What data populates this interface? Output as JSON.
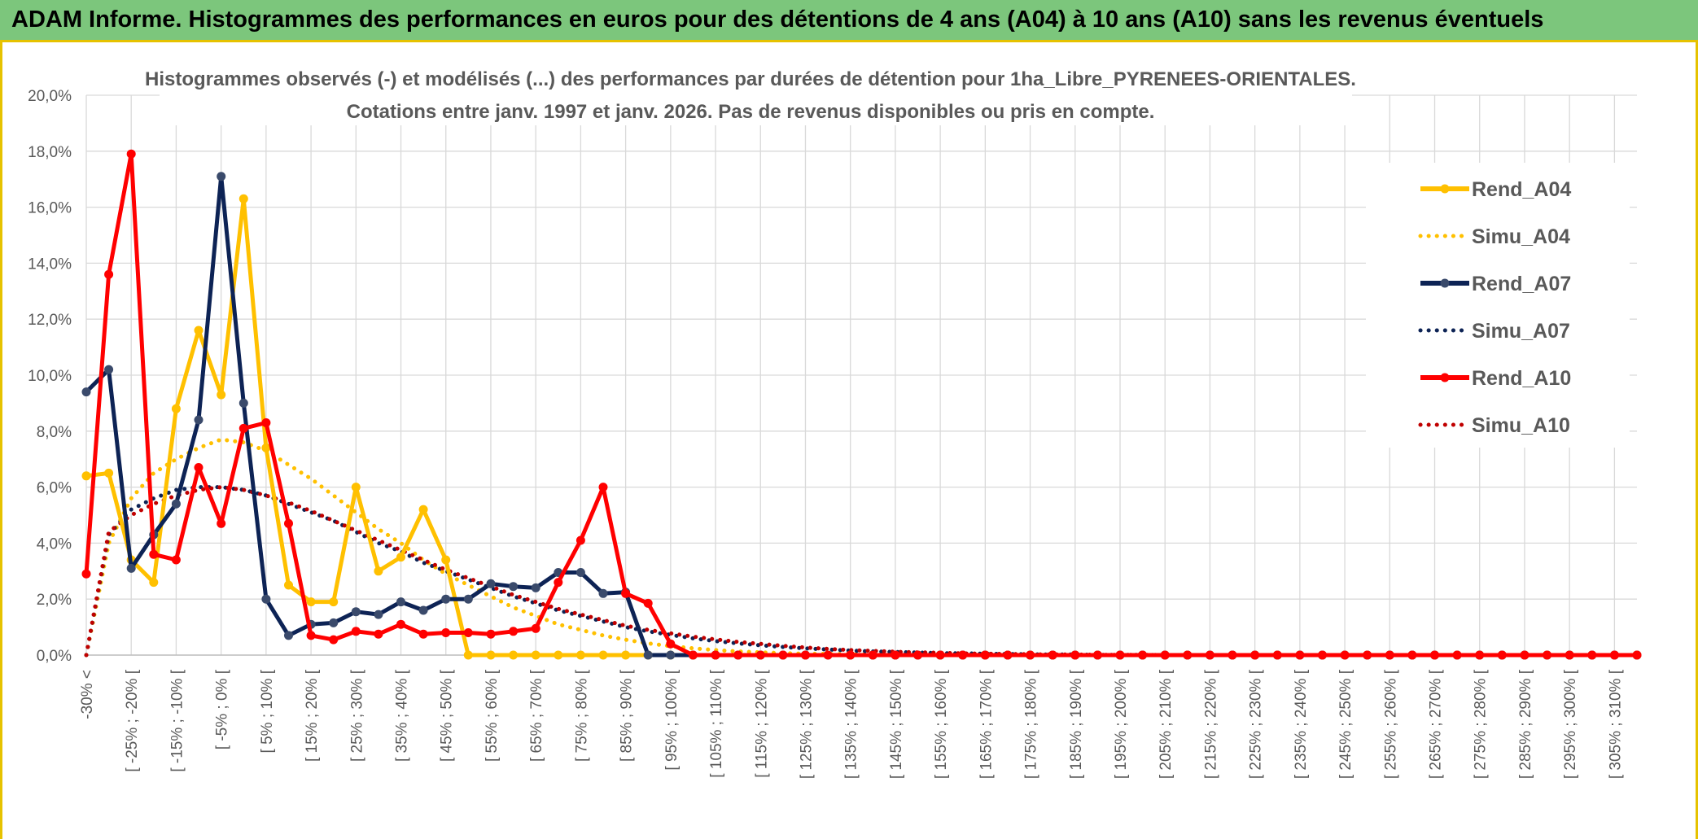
{
  "header": {
    "title": "ADAM Informe. Histogrammes des performances en euros pour des détentions de 4 ans (A04) à 10 ans (A10) sans les revenus éventuels"
  },
  "chart_data": {
    "type": "line",
    "title_line1": "Histogrammes observés (-) et modélisés (...) des performances par durées de détention pour 1ha_Libre_PYRENEES-ORIENTALES.",
    "title_line2": "Cotations entre janv. 1997 et janv. 2026. Pas de revenus disponibles ou pris en compte.",
    "ylim": [
      0,
      20
    ],
    "yticks": [
      "0,0%",
      "2,0%",
      "4,0%",
      "6,0%",
      "8,0%",
      "10,0%",
      "12,0%",
      "14,0%",
      "16,0%",
      "18,0%",
      "20,0%"
    ],
    "x_labels": [
      "-30% <",
      "[ -25% ; -20% [",
      "[ -15% ; -10% [",
      "[ -5% ; 0% [",
      "[ 5% ; 10% [",
      "[ 15% ; 20% [",
      "[ 25% ; 30% [",
      "[ 35% ; 40% [",
      "[ 45% ; 50% [",
      "[ 55% ; 60% [",
      "[ 65% ; 70% [",
      "[ 75% ; 80% [",
      "[ 85% ; 90% [",
      "[ 95% ; 100% [",
      "[ 105% ; 110% [",
      "[ 115% ; 120% [",
      "[ 125% ; 130% [",
      "[ 135% ; 140% [",
      "[ 145% ; 150% [",
      "[ 155% ; 160% [",
      "[ 165% ; 170% [",
      "[ 175% ; 180% [",
      "[ 185% ; 190% [",
      "[ 195% ; 200% [",
      "[ 205% ; 210% [",
      "[ 215% ; 220% [",
      "[ 225% ; 230% [",
      "[ 235% ; 240% [",
      "[ 245% ; 250% [",
      "[ 255% ; 260% [",
      "[ 265% ; 270% [",
      "[ 275% ; 280% [",
      "[ 285% ; 290% [",
      "[ 295% ; 300% [",
      "[ 305% ; 310% ["
    ],
    "n_points": 70,
    "series": [
      {
        "name": "Rend_A04",
        "style": "solid",
        "color": "#ffc000",
        "values": [
          6.4,
          6.5,
          3.4,
          2.6,
          8.8,
          11.6,
          9.3,
          16.3,
          7.4,
          2.5,
          1.9,
          1.9,
          6.0,
          3.0,
          3.5,
          5.2,
          3.4,
          0,
          0,
          0,
          0,
          0,
          0,
          0,
          0,
          0,
          0,
          0,
          0,
          0,
          0,
          0,
          0,
          0,
          0,
          0,
          0,
          0,
          0,
          0,
          0,
          0,
          0,
          0,
          0,
          0,
          0,
          0,
          0,
          0,
          0,
          0,
          0,
          0,
          0,
          0,
          0,
          0,
          0,
          0,
          0,
          0,
          0,
          0,
          0,
          0,
          0,
          0,
          0,
          0
        ]
      },
      {
        "name": "Simu_A04",
        "style": "dotted",
        "color": "#ffc000",
        "values": [
          0,
          4.0,
          5.6,
          6.5,
          7.0,
          7.4,
          7.7,
          7.6,
          7.3,
          6.8,
          6.3,
          5.7,
          5.1,
          4.5,
          4.0,
          3.4,
          2.9,
          2.5,
          2.1,
          1.7,
          1.4,
          1.1,
          0.9,
          0.7,
          0.55,
          0.42,
          0.32,
          0.24,
          0.18,
          0.13,
          0.1,
          0.07,
          0.05,
          0.04,
          0.03,
          0.02,
          0.01,
          0.01,
          0.01,
          0,
          0,
          0,
          0,
          0,
          0,
          0,
          0,
          0,
          0,
          0,
          0,
          0,
          0,
          0,
          0,
          0,
          0,
          0,
          0,
          0,
          0,
          0,
          0,
          0,
          0,
          0,
          0,
          0,
          0,
          0
        ]
      },
      {
        "name": "Rend_A07",
        "style": "solid",
        "color": "#0d2355",
        "values": [
          9.4,
          10.2,
          3.1,
          4.3,
          5.4,
          8.4,
          17.1,
          9.0,
          2.0,
          0.7,
          1.1,
          1.15,
          1.55,
          1.45,
          1.9,
          1.6,
          2.0,
          2.0,
          2.55,
          2.45,
          2.4,
          2.95,
          2.95,
          2.2,
          2.25,
          0,
          0,
          0,
          0,
          0,
          0,
          0,
          0,
          0,
          0,
          0,
          0,
          0,
          0,
          0,
          0,
          0,
          0,
          0,
          0,
          0,
          0,
          0,
          0,
          0,
          0,
          0,
          0,
          0,
          0,
          0,
          0,
          0,
          0,
          0,
          0,
          0,
          0,
          0,
          0,
          0,
          0,
          0,
          0,
          0
        ]
      },
      {
        "name": "Simu_A07",
        "style": "dotted",
        "color": "#0d2355",
        "values": [
          0,
          4.3,
          5.2,
          5.6,
          5.9,
          6.0,
          6.0,
          5.9,
          5.7,
          5.4,
          5.1,
          4.8,
          4.4,
          4.0,
          3.7,
          3.3,
          3.0,
          2.7,
          2.4,
          2.1,
          1.85,
          1.6,
          1.4,
          1.2,
          1.0,
          0.85,
          0.72,
          0.6,
          0.5,
          0.42,
          0.35,
          0.29,
          0.24,
          0.2,
          0.16,
          0.13,
          0.11,
          0.09,
          0.07,
          0.06,
          0.05,
          0.04,
          0.03,
          0.02,
          0.02,
          0.01,
          0.01,
          0.01,
          0,
          0,
          0,
          0,
          0,
          0,
          0,
          0,
          0,
          0,
          0,
          0,
          0,
          0,
          0,
          0,
          0,
          0,
          0,
          0,
          0,
          0
        ]
      },
      {
        "name": "Rend_A10",
        "style": "solid",
        "color": "#ff0000",
        "values": [
          2.9,
          13.6,
          17.9,
          3.6,
          3.4,
          6.7,
          4.7,
          8.1,
          8.3,
          4.7,
          0.7,
          0.55,
          0.85,
          0.75,
          1.1,
          0.75,
          0.8,
          0.8,
          0.75,
          0.85,
          0.95,
          2.6,
          4.1,
          6.0,
          2.2,
          1.85,
          0.4,
          0,
          0,
          0,
          0,
          0,
          0,
          0,
          0,
          0,
          0,
          0,
          0,
          0,
          0,
          0,
          0,
          0,
          0,
          0,
          0,
          0,
          0,
          0,
          0,
          0,
          0,
          0,
          0,
          0,
          0,
          0,
          0,
          0,
          0,
          0,
          0,
          0,
          0,
          0,
          0,
          0,
          0,
          0
        ]
      },
      {
        "name": "Simu_A10",
        "style": "dotted",
        "color": "#c00000",
        "values": [
          0,
          4.4,
          5.0,
          5.4,
          5.7,
          5.9,
          6.0,
          5.9,
          5.7,
          5.45,
          5.15,
          4.8,
          4.45,
          4.1,
          3.75,
          3.4,
          3.05,
          2.75,
          2.45,
          2.15,
          1.9,
          1.65,
          1.45,
          1.25,
          1.05,
          0.9,
          0.78,
          0.66,
          0.56,
          0.47,
          0.4,
          0.33,
          0.27,
          0.22,
          0.18,
          0.15,
          0.12,
          0.1,
          0.08,
          0.06,
          0.05,
          0.04,
          0.03,
          0.02,
          0.02,
          0.01,
          0.01,
          0.01,
          0,
          0,
          0,
          0,
          0,
          0,
          0,
          0,
          0,
          0,
          0,
          0,
          0,
          0,
          0,
          0,
          0,
          0,
          0,
          0,
          0,
          0
        ]
      }
    ],
    "legend_position": "right"
  }
}
